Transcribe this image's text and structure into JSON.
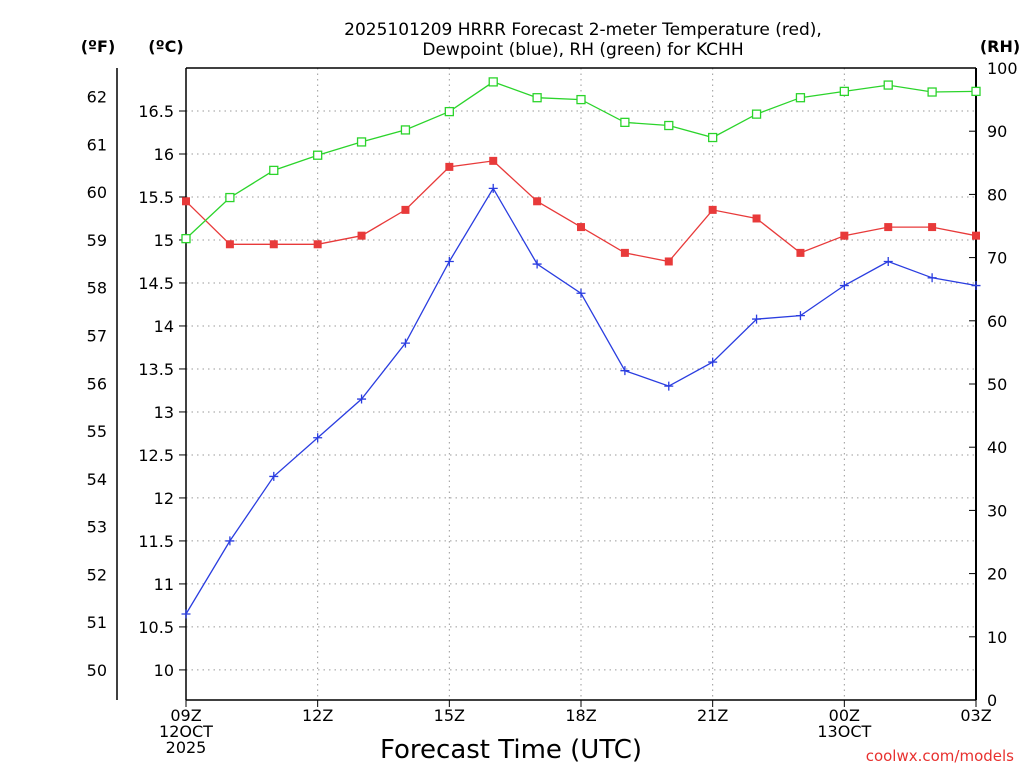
{
  "chart_data": {
    "type": "line",
    "title": {
      "line1": "2025101209 HRRR Forecast 2-meter Temperature (red),",
      "line2": "Dewpoint (blue), RH (green) for KCHH"
    },
    "xlabel": "Forecast Time (UTC)",
    "credit": "coolwx.com/models",
    "units": {
      "fahrenheit": "(ºF)",
      "celsius": "(ºC)",
      "rh": "(RH)"
    },
    "x_hours": [
      0,
      1,
      2,
      3,
      4,
      5,
      6,
      7,
      8,
      9,
      10,
      11,
      12,
      13,
      14,
      15,
      16,
      17,
      18
    ],
    "x_ticks": [
      {
        "hour": 0,
        "lines": [
          "09Z",
          "12OCT",
          "2025"
        ]
      },
      {
        "hour": 3,
        "lines": [
          "12Z"
        ]
      },
      {
        "hour": 6,
        "lines": [
          "15Z"
        ]
      },
      {
        "hour": 9,
        "lines": [
          "18Z"
        ]
      },
      {
        "hour": 12,
        "lines": [
          "21Z"
        ]
      },
      {
        "hour": 15,
        "lines": [
          "00Z",
          "13OCT"
        ]
      },
      {
        "hour": 18,
        "lines": [
          "03Z"
        ]
      }
    ],
    "celsius_axis": {
      "range": [
        9.65,
        17.0
      ],
      "ticks": [
        "10",
        "10.5",
        "11",
        "11.5",
        "12",
        "12.5",
        "13",
        "13.5",
        "14",
        "14.5",
        "15",
        "15.5",
        "16",
        "16.5"
      ]
    },
    "fahrenheit_axis": {
      "ticks": [
        "50",
        "51",
        "52",
        "53",
        "54",
        "55",
        "56",
        "57",
        "58",
        "59",
        "60",
        "61",
        "62"
      ]
    },
    "rh_axis": {
      "range": [
        0,
        100
      ],
      "ticks": [
        "0",
        "10",
        "20",
        "30",
        "40",
        "50",
        "60",
        "70",
        "80",
        "90",
        "100"
      ]
    },
    "series": [
      {
        "name": "Temperature",
        "axis": "celsius",
        "color": "#e83a3a",
        "marker": "filled-square",
        "values": [
          15.45,
          14.95,
          14.95,
          14.95,
          15.05,
          15.35,
          15.85,
          15.92,
          15.45,
          15.15,
          14.85,
          14.75,
          15.35,
          15.25,
          14.85,
          15.05,
          15.15,
          15.15,
          15.05
        ]
      },
      {
        "name": "Dewpoint",
        "axis": "celsius",
        "color": "#2a3de0",
        "marker": "plus",
        "values": [
          10.65,
          11.5,
          12.25,
          12.7,
          13.15,
          13.8,
          14.75,
          15.6,
          14.72,
          14.38,
          13.48,
          13.3,
          13.58,
          14.08,
          14.12,
          14.47,
          14.75,
          14.56,
          14.47
        ]
      },
      {
        "name": "RH",
        "axis": "rh",
        "color": "#2bd42b",
        "marker": "open-square",
        "values": [
          73,
          79.5,
          83.8,
          86.2,
          88.3,
          90.2,
          93.1,
          97.8,
          95.3,
          95,
          91.4,
          90.9,
          89,
          92.7,
          95.3,
          96.3,
          97.3,
          96.2,
          96.3
        ]
      }
    ]
  }
}
